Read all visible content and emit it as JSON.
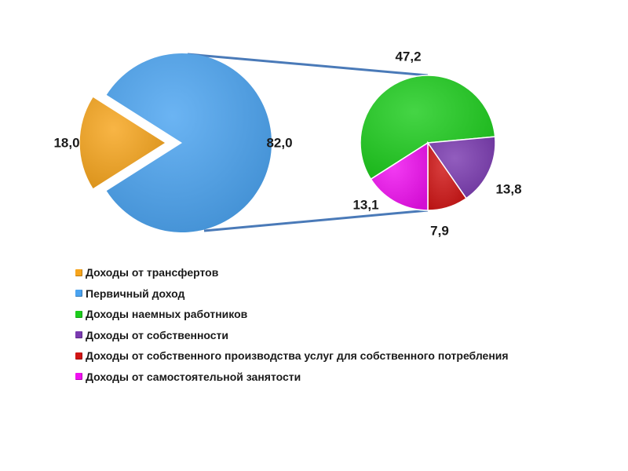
{
  "chart_data": {
    "type": "pie",
    "title": "",
    "main_pie": {
      "slices": [
        {
          "name": "Первичный доход",
          "value": 82.0,
          "label": "82,0",
          "color": "#4aa3f0"
        },
        {
          "name": "Доходы от трансфертов",
          "value": 18.0,
          "label": "18,0",
          "color": "#f7a51c"
        }
      ]
    },
    "secondary_pie": {
      "breakdown_of": "Первичный доход",
      "slices": [
        {
          "name": "Доходы наемных работников",
          "value": 47.2,
          "label": "47,2",
          "color": "#1ccc1c"
        },
        {
          "name": "Доходы от собственности",
          "value": 13.8,
          "label": "13,8",
          "color": "#7a3ab0"
        },
        {
          "name": "Доходы от собственного производства услуг для собственного потребления",
          "value": 7.9,
          "label": "7,9",
          "color": "#d01414"
        },
        {
          "name": "Доходы от самостоятельной занятости",
          "value": 13.1,
          "label": "13,1",
          "color": "#f010f0"
        }
      ]
    },
    "connector_color": "#4a7ab8",
    "legend_placement": "bottom-left",
    "legend": [
      {
        "label": "Доходы от трансфертов",
        "color": "#f7a51c"
      },
      {
        "label": "Первичный доход",
        "color": "#4aa3f0"
      },
      {
        "label": "Доходы наемных работников",
        "color": "#1ccc1c"
      },
      {
        "label": "Доходы от собственности",
        "color": "#7a3ab0"
      },
      {
        "label": "Доходы от собственного производства услуг для собственного потребления",
        "color": "#d01414"
      },
      {
        "label": "Доходы от самостоятельной занятости",
        "color": "#f010f0"
      }
    ]
  }
}
